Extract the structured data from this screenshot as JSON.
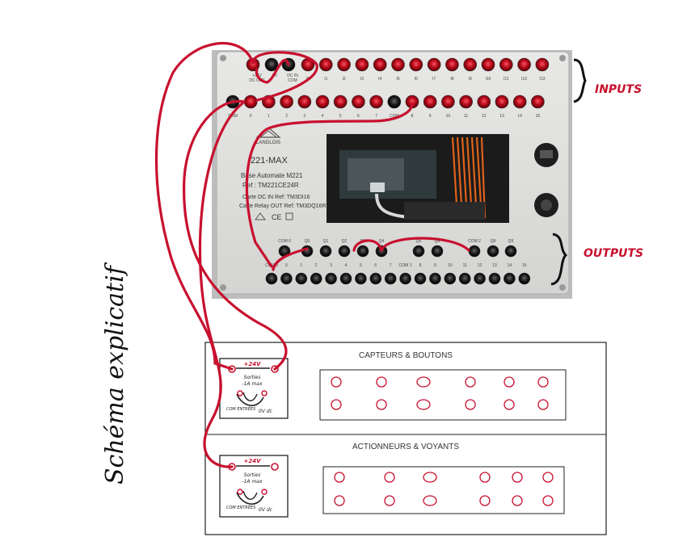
{
  "labels": {
    "inputs": "INPUTS",
    "outputs": "OUTPUTS",
    "schema": "Schéma explicatif"
  },
  "plc": {
    "brand": "LANGLOIS",
    "model": "221-MAX",
    "base": "Base Automate M221",
    "ref": "Ref : TM221CE24R",
    "card_in": "Carte DC IN Ref: TM3DI16",
    "card_out": "Carte Relay OUT Ref: TM3DQ16R",
    "top_row_left": [
      "+24V",
      "DC OUT",
      "0V",
      "DC IN",
      "COM"
    ],
    "input_row1": [
      "I0",
      "I1",
      "I2",
      "I3",
      "I4",
      "I5",
      "I6",
      "I7",
      "I8",
      "I9",
      "I10",
      "I11",
      "I12",
      "I13"
    ],
    "input_row2": [
      "COM",
      "0",
      "1",
      "2",
      "3",
      "4",
      "5",
      "6",
      "7",
      "COM",
      "8",
      "9",
      "10",
      "11",
      "12",
      "13",
      "14",
      "15"
    ],
    "output_row1": [
      "COM 0",
      "Q0",
      "Q1",
      "Q2",
      "Q3",
      "Q4",
      "Q5",
      "Q6",
      "COM 2",
      "Q8",
      "Q9"
    ],
    "output_row2": [
      "COM 0",
      "0",
      "1",
      "2",
      "3",
      "4",
      "5",
      "6",
      "7",
      "COM 1",
      "8",
      "9",
      "10",
      "11",
      "12",
      "13",
      "14",
      "15"
    ]
  },
  "panels": [
    {
      "title": "CAPTEURS & BOUTONS",
      "module": {
        "top": "+24V",
        "middle_line1": "Sorties",
        "middle_line2": "-1A max",
        "left": "COM ENTRÉES",
        "right": "0V dc"
      }
    },
    {
      "title": "ACTIONNEURS & VOYANTS",
      "module": {
        "top": "+24V",
        "middle_line1": "Sorties",
        "middle_line2": "-1A max",
        "left": "COM ENTRÉES",
        "right": "0V dc"
      }
    }
  ],
  "colors": {
    "wire": "#c8102e",
    "accent": "#c8102e",
    "line": "#222222"
  }
}
